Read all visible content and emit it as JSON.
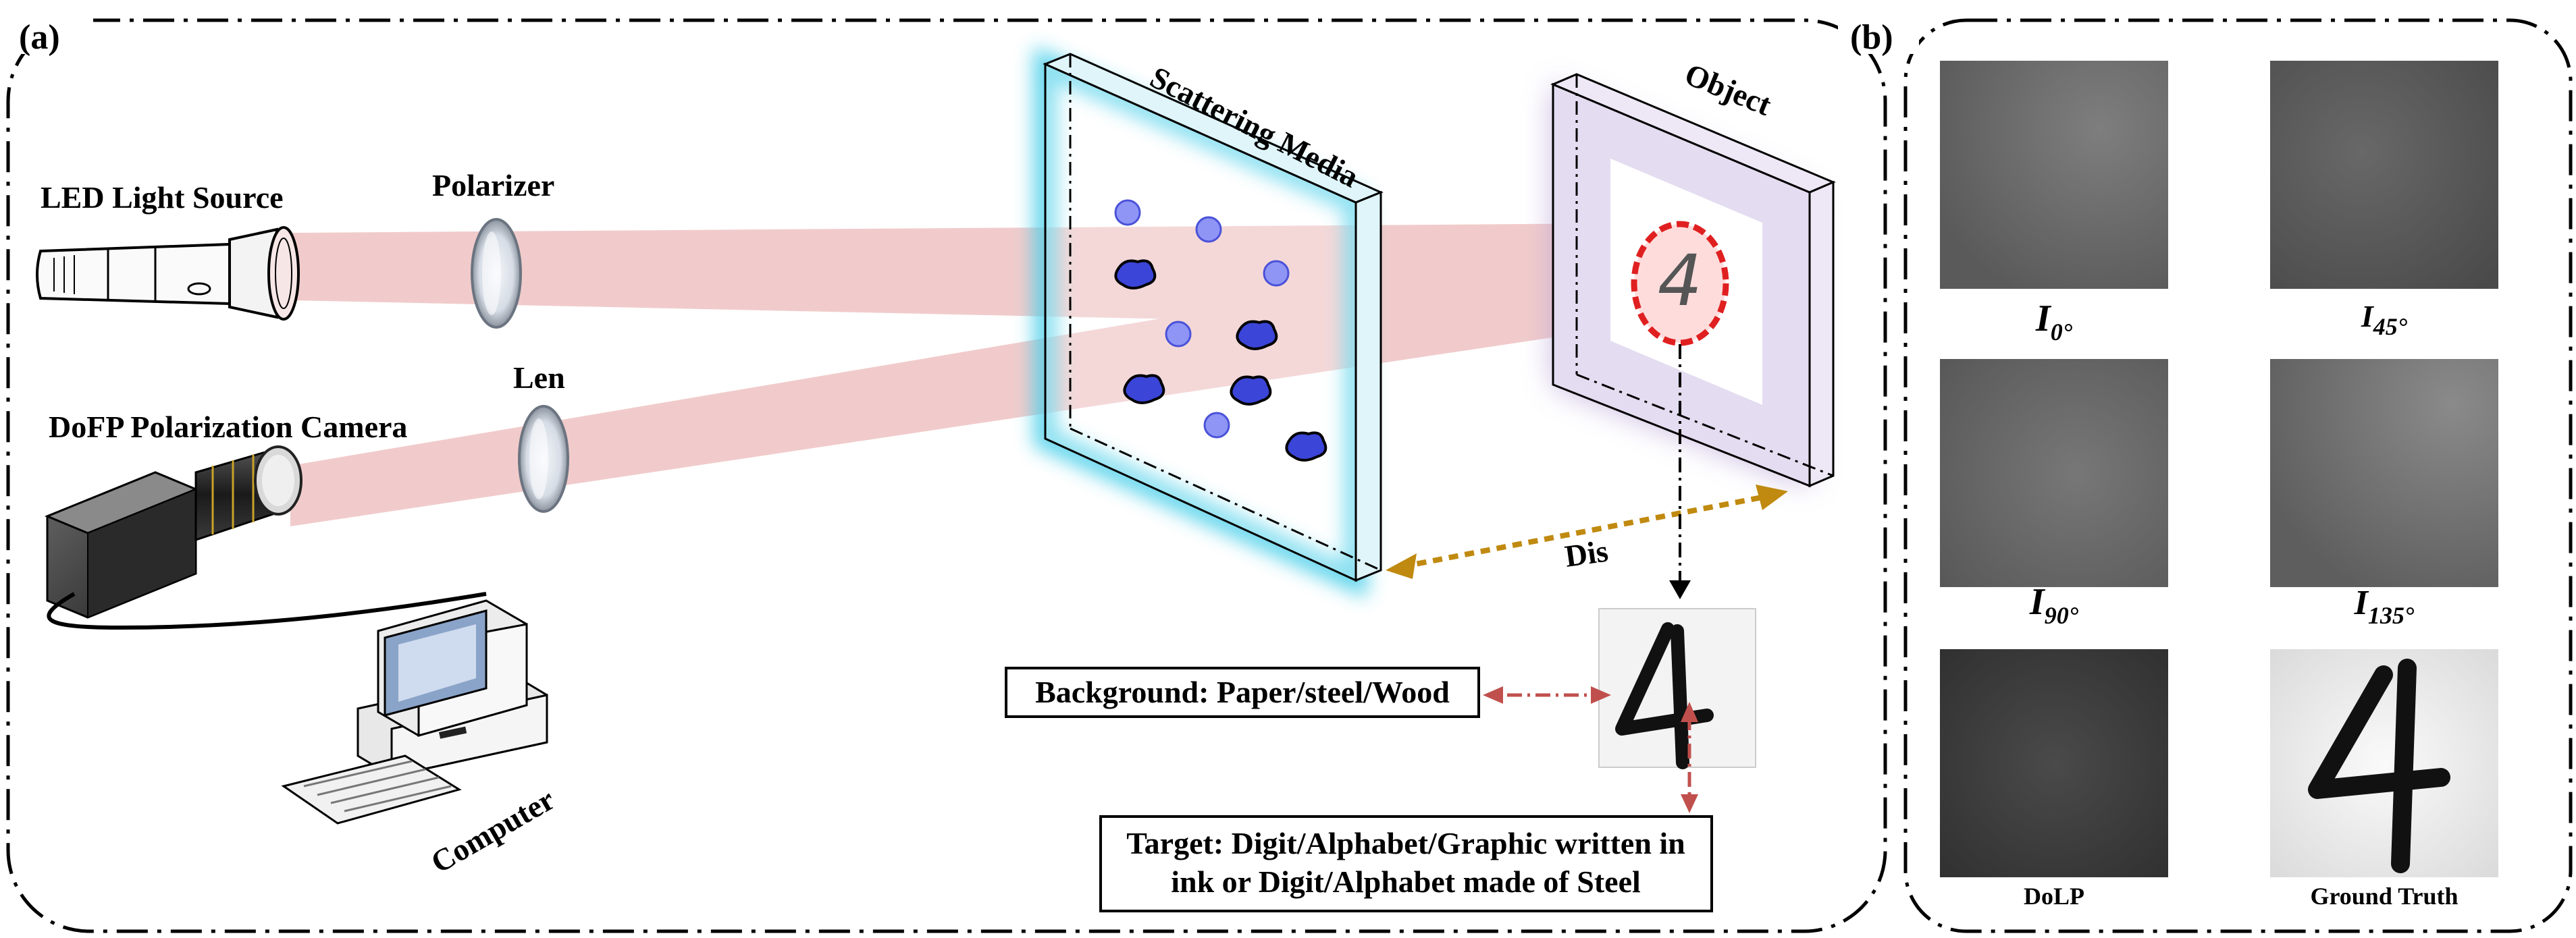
{
  "panel_a": {
    "tag": "(a)",
    "labels": {
      "led": "LED Light Source",
      "polarizer": "Polarizer",
      "camera": "DoFP Polarization Camera",
      "lens": "Len",
      "computer": "Computer",
      "scattering": "Scattering Media",
      "object": "Object",
      "dis": "Dis",
      "digit": "4",
      "background": "Background: Paper/steel/Wood",
      "target_line1": "Target: Digit/Alphabet/Graphic written in",
      "target_line2": "ink or Digit/Alphabet made of Steel"
    }
  },
  "panel_b": {
    "tag": "(b)",
    "images": [
      {
        "cap_main": "I",
        "cap_sub": "0°"
      },
      {
        "cap_main": "I",
        "cap_sub": "45°"
      },
      {
        "cap_main": "I",
        "cap_sub": "90°"
      },
      {
        "cap_main": "I",
        "cap_sub": "135°"
      },
      {
        "cap_main": "DoLP",
        "cap_sub": ""
      },
      {
        "cap_main": "Ground Truth",
        "cap_sub": ""
      }
    ],
    "gt_digit": "4"
  },
  "colors": {
    "beam": "#e8a0a0",
    "scatter_glow": "#5fd0e8",
    "object_glow": "#b9a6d8",
    "particle_fill": "#7f86f0",
    "particle_dark": "#3b45d8",
    "dis_arrow": "#c08a10",
    "red_arrow": "#c0504d",
    "ellipse": "#e02020"
  }
}
